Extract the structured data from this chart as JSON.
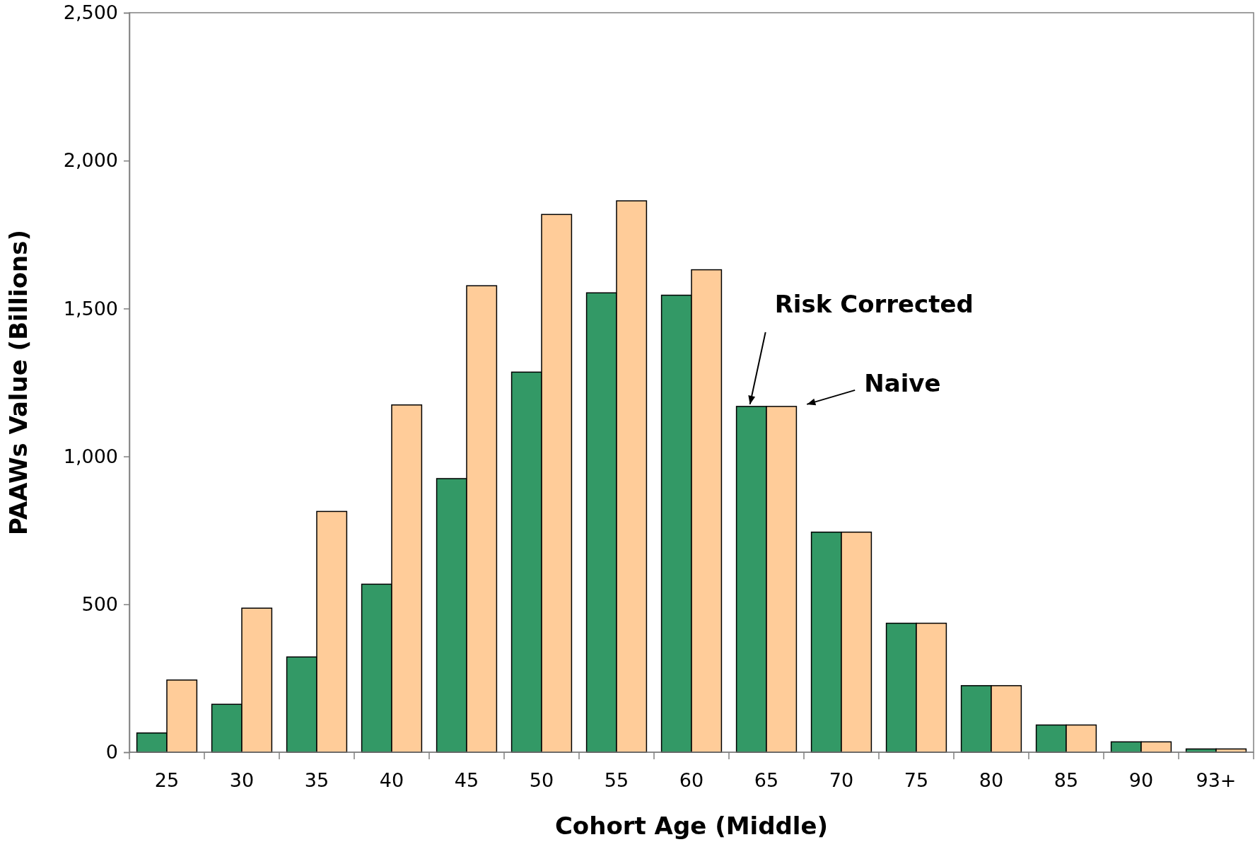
{
  "chart_data": {
    "type": "bar",
    "xlabel": "Cohort Age (Middle)",
    "ylabel": "PAAWs Value (Billions)",
    "categories": [
      "25",
      "30",
      "35",
      "40",
      "45",
      "50",
      "55",
      "60",
      "65",
      "70",
      "75",
      "80",
      "85",
      "90",
      "93+"
    ],
    "series": [
      {
        "name": "Risk Corrected",
        "color": "#339966",
        "values": [
          65,
          162,
          322,
          568,
          925,
          1285,
          1553,
          1545,
          1169,
          744,
          436,
          225,
          92,
          35,
          11
        ]
      },
      {
        "name": "Naive",
        "color": "#ffcc99",
        "values": [
          244,
          487,
          814,
          1174,
          1577,
          1818,
          1864,
          1631,
          1169,
          744,
          436,
          225,
          92,
          35,
          11
        ]
      }
    ],
    "ylim": [
      0,
      2500
    ],
    "yticks": [
      {
        "value": 0,
        "label": "0"
      },
      {
        "value": 500,
        "label": "500"
      },
      {
        "value": 1000,
        "label": "1,000"
      },
      {
        "value": 1500,
        "label": "1,500"
      },
      {
        "value": 2000,
        "label": "2,000"
      },
      {
        "value": 2500,
        "label": "2,500"
      }
    ],
    "grid": false,
    "legend": "center"
  }
}
